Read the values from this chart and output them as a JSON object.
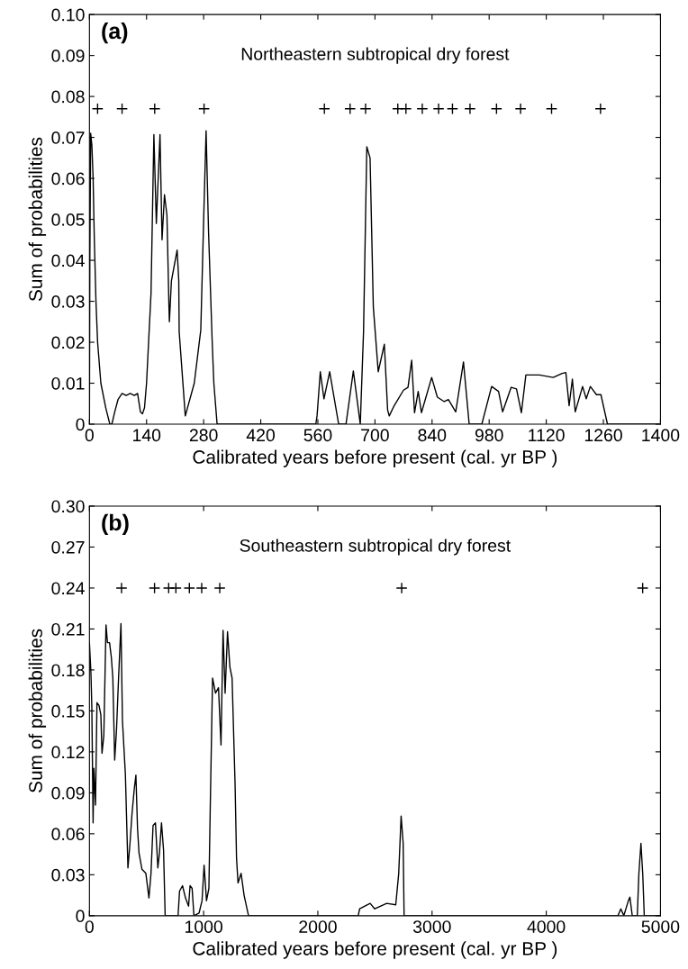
{
  "chart_data": [
    {
      "type": "line",
      "title": "Northeastern subtropical dry forest",
      "annotations": [
        "(a)"
      ],
      "xlabel": "Calibrated years before present (cal. yr BP )",
      "ylabel": "Sum of probabilities",
      "xlim": [
        0,
        1400
      ],
      "ylim": [
        0,
        0.1
      ],
      "xticks": [
        0,
        140,
        280,
        420,
        560,
        700,
        840,
        980,
        1120,
        1260,
        1400
      ],
      "yticks": [
        0,
        0.01,
        0.02,
        0.03,
        0.04,
        0.05,
        0.06,
        0.07,
        0.08,
        0.09,
        {
          "value": 0.1,
          "label": "0.10"
        }
      ],
      "grid": false,
      "legend": false,
      "series": [
        {
          "color": "#000000",
          "marker": "none",
          "line_style": "solid",
          "x": [
            0,
            1,
            3,
            6,
            9,
            12,
            16,
            20,
            28,
            40,
            50,
            55,
            62,
            70,
            80,
            90,
            100,
            110,
            118,
            125,
            130,
            135,
            140,
            151,
            158,
            164,
            173,
            178,
            184,
            190,
            195,
            196,
            201,
            215,
            219,
            220,
            235,
            257,
            273,
            281,
            286,
            292,
            301,
            305,
            313,
            555,
            558,
            566,
            575,
            589,
            611,
            629,
            647,
            664,
            672,
            680,
            688,
            696,
            708,
            723,
            731,
            735,
            747,
            770,
            781,
            790,
            797,
            806,
            814,
            839,
            853,
            870,
            880,
            898,
            917,
            931,
            962,
            986,
            1003,
            1013,
            1034,
            1047,
            1059,
            1070,
            1103,
            1137,
            1159,
            1168,
            1176,
            1184,
            1191,
            1209,
            1218,
            1228,
            1243,
            1254,
            1270,
            1400
          ],
          "values": [
            0,
            0.04,
            0.071,
            0.068,
            0.06,
            0.045,
            0.03,
            0.02,
            0.01,
            0.004,
            0,
            0,
            0.003,
            0.006,
            0.0075,
            0.007,
            0.0075,
            0.007,
            0.0075,
            0.003,
            0.0025,
            0.004,
            0.01,
            0.032,
            0.0707,
            0.049,
            0.0707,
            0.045,
            0.056,
            0.051,
            0.0286,
            0.025,
            0.035,
            0.0425,
            0.035,
            0.0226,
            0.002,
            0.01,
            0.023,
            0.0536,
            0.0716,
            0.047,
            0.02,
            0.01,
            0,
            0,
            0.002,
            0.0128,
            0.0062,
            0.0128,
            0,
            0,
            0.013,
            0,
            0.0226,
            0.0677,
            0.065,
            0.0286,
            0.0128,
            0.0195,
            0.0035,
            0.002,
            0.0045,
            0.0083,
            0.009,
            0.0156,
            0.0028,
            0.008,
            0.0028,
            0.0114,
            0.0066,
            0.0055,
            0.006,
            0.003,
            0.0152,
            0,
            0,
            0.0092,
            0.008,
            0.003,
            0.009,
            0.0086,
            0.0028,
            0.012,
            0.012,
            0.0114,
            0.0124,
            0.0126,
            0.0045,
            0.011,
            0.003,
            0.0092,
            0.0062,
            0.0092,
            0.0072,
            0.0072,
            0,
            0
          ]
        },
        {
          "type": "scatter",
          "color": "#000000",
          "marker": "cross",
          "x": [
            20,
            80,
            160,
            281,
            576,
            639,
            677,
            756,
            776,
            816,
            856,
            890,
            933,
            998,
            1057,
            1133,
            1253
          ],
          "values": [
            0.077,
            0.077,
            0.077,
            0.077,
            0.077,
            0.077,
            0.077,
            0.077,
            0.077,
            0.077,
            0.077,
            0.077,
            0.077,
            0.077,
            0.077,
            0.077,
            0.077
          ]
        }
      ]
    },
    {
      "type": "line",
      "title": "Southeastern subtropical dry forest",
      "annotations": [
        "(b)"
      ],
      "xlabel": "Calibrated years before present (cal. yr BP )",
      "ylabel": "Sum of probabilities",
      "xlim": [
        0,
        5000
      ],
      "ylim": [
        0,
        0.3
      ],
      "xticks": [
        0,
        1000,
        2000,
        3000,
        4000,
        5000
      ],
      "yticks": [
        0,
        0.03,
        0.06,
        0.09,
        0.12,
        0.15,
        0.18,
        0.21,
        0.24,
        0.27,
        {
          "value": 0.3,
          "label": "0.30"
        }
      ],
      "grid": false,
      "legend": false,
      "series": [
        {
          "color": "#000000",
          "marker": "none",
          "line_style": "solid",
          "x": [
            0,
            13,
            21,
            32,
            39,
            53,
            66,
            84,
            100,
            110,
            126,
            145,
            158,
            176,
            192,
            205,
            221,
            237,
            255,
            276,
            289,
            315,
            337,
            355,
            373,
            394,
            407,
            421,
            434,
            460,
            494,
            521,
            539,
            557,
            578,
            599,
            613,
            631,
            649,
            663,
            776,
            789,
            815,
            841,
            868,
            881,
            899,
            915,
            960,
            986,
            1004,
            1025,
            1046,
            1057,
            1078,
            1104,
            1130,
            1152,
            1170,
            1188,
            1209,
            1230,
            1249,
            1275,
            1288,
            1301,
            1328,
            1354,
            1393,
            2353,
            2366,
            2458,
            2498,
            2603,
            2682,
            2708,
            2729,
            2747,
            2755,
            4627,
            4653,
            4679,
            4719,
            4732,
            4753,
            4797,
            4811,
            4829,
            4845,
            4858,
            5000
          ],
          "values": [
            0.2,
            0.178,
            0.152,
            0.068,
            0.108,
            0.081,
            0.156,
            0.154,
            0.147,
            0.119,
            0.132,
            0.213,
            0.2,
            0.2,
            0.189,
            0.174,
            0.114,
            0.136,
            0.174,
            0.214,
            0.143,
            0.103,
            0.035,
            0.053,
            0.075,
            0.094,
            0.103,
            0.064,
            0.046,
            0.034,
            0.031,
            0.013,
            0.031,
            0.066,
            0.068,
            0.035,
            0.046,
            0.068,
            0.048,
            0,
            0,
            0.018,
            0.022,
            0.013,
            0.007,
            0.022,
            0.02,
            0,
            0.002,
            0.011,
            0.037,
            0.011,
            0.02,
            0.075,
            0.174,
            0.163,
            0.167,
            0.125,
            0.209,
            0.163,
            0.208,
            0.182,
            0.174,
            0.097,
            0.042,
            0.024,
            0.031,
            0.015,
            0,
            0,
            0.005,
            0.009,
            0.005,
            0.009,
            0.008,
            0.031,
            0.073,
            0.053,
            0,
            0,
            0.005,
            0,
            0.011,
            0.0136,
            0,
            0,
            0.031,
            0.053,
            0.03,
            0,
            0
          ]
        },
        {
          "type": "scatter",
          "color": "#000000",
          "marker": "cross",
          "x": [
            281,
            570,
            694,
            757,
            875,
            983,
            1141,
            2734,
            4844
          ],
          "values": [
            0.24,
            0.24,
            0.24,
            0.24,
            0.24,
            0.24,
            0.24,
            0.24,
            0.24
          ]
        }
      ]
    }
  ]
}
